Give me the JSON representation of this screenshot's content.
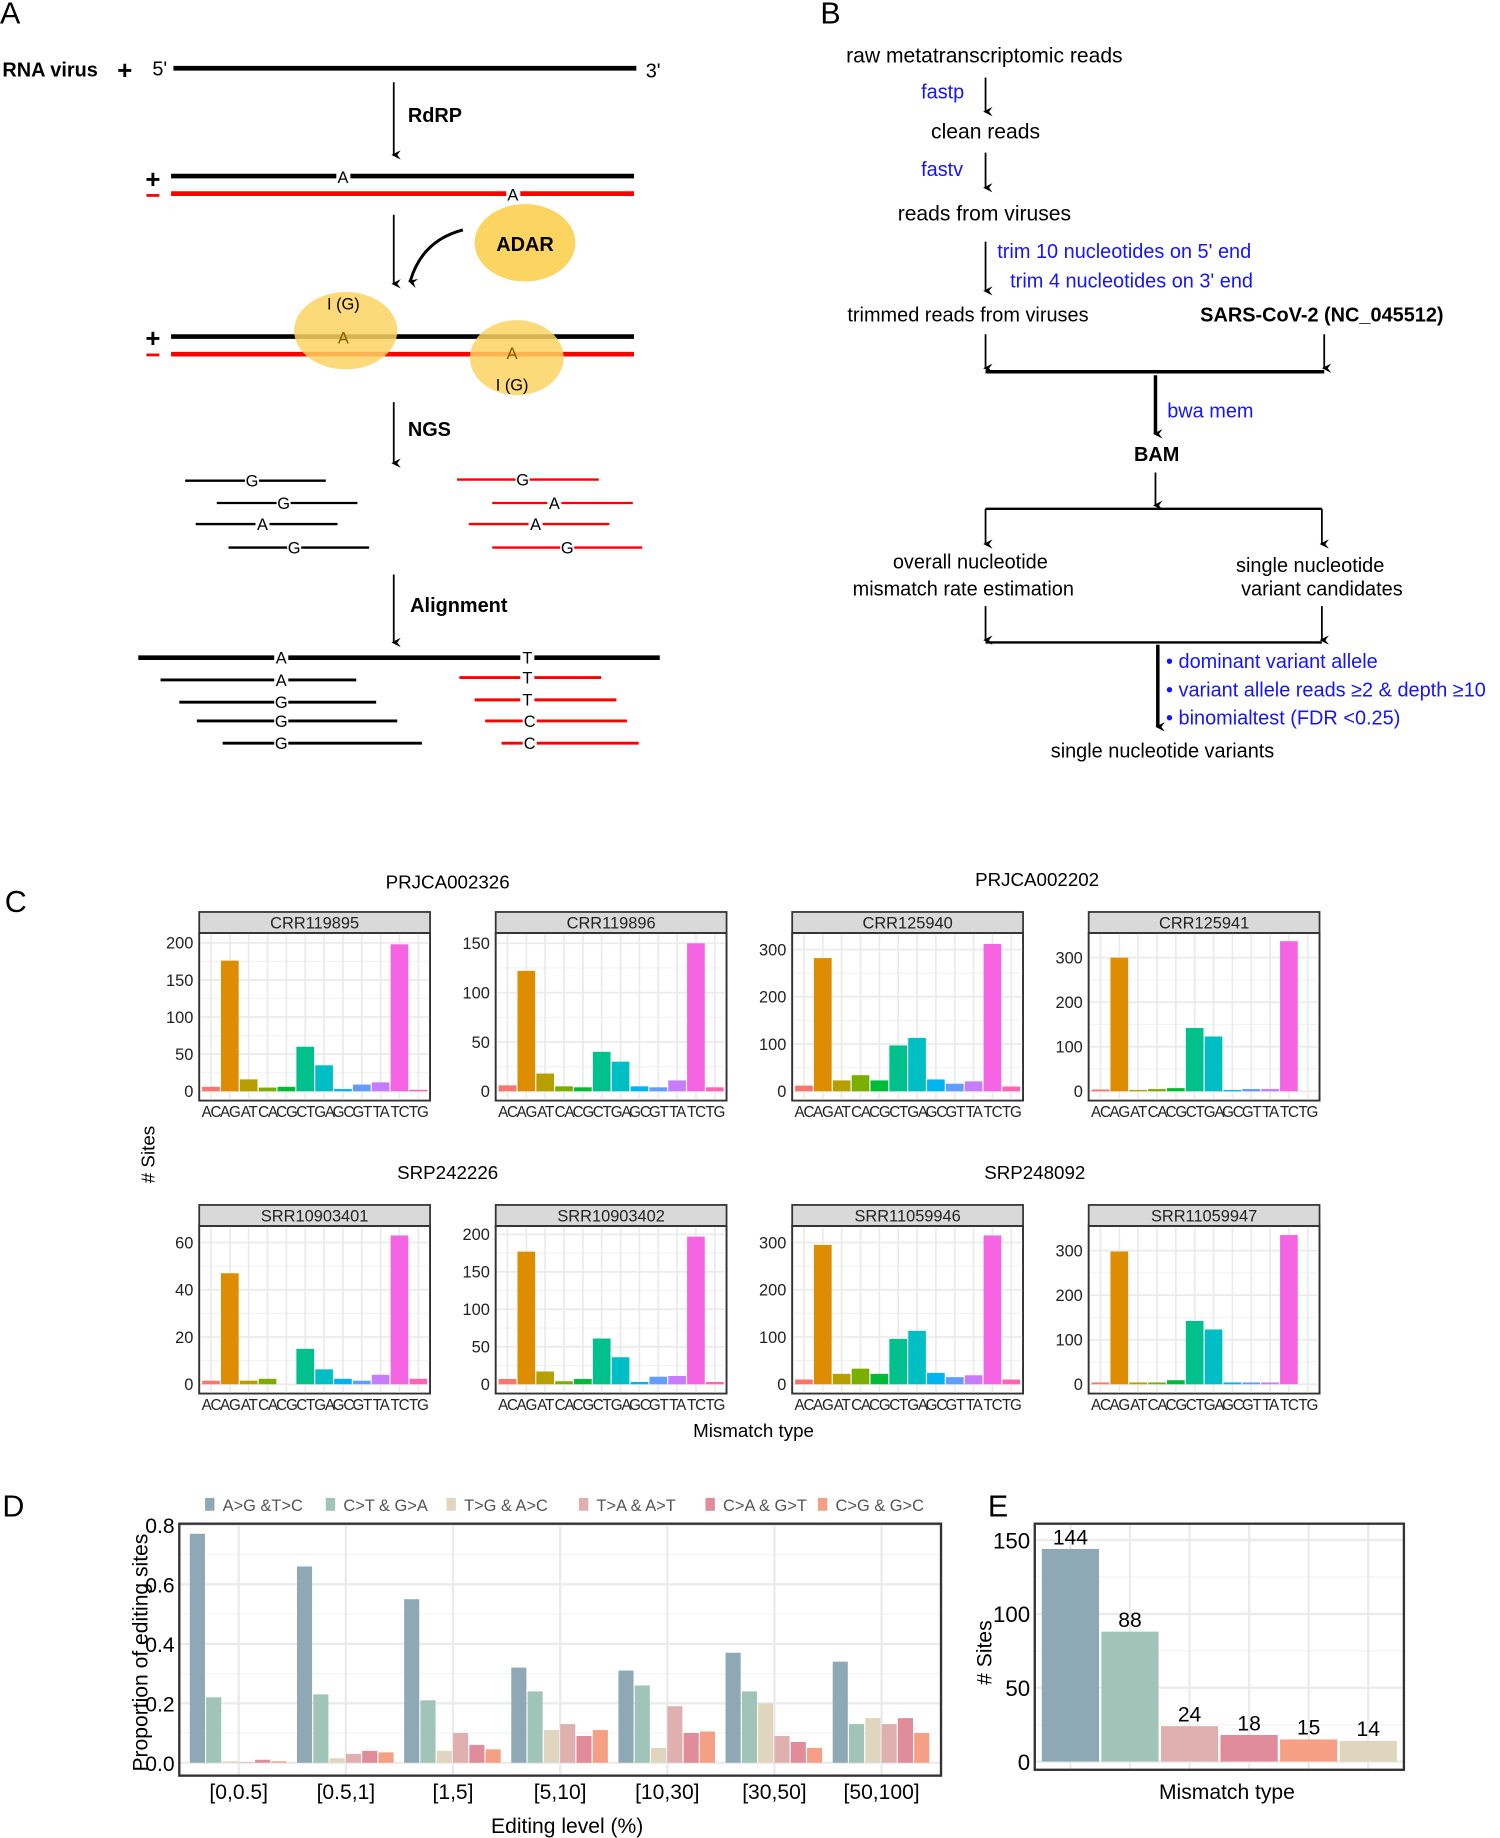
{
  "panel_a": {
    "letter": "A",
    "rna_virus": "RNA  virus",
    "plus": "+",
    "minus": "−",
    "five_prime": "5'",
    "three_prime": "3'",
    "rdrp": "RdRP",
    "adar": "ADAR",
    "ngs": "NGS",
    "alignment": "Alignment",
    "base_a": "A",
    "base_g": "G",
    "base_t": "T",
    "base_c": "C",
    "inosine": "I (G)",
    "colors": {
      "plus_strand": "#000000",
      "minus_strand": "#ff0000",
      "adar": "#fcd462"
    }
  },
  "panel_b": {
    "letter": "B",
    "raw_reads": "raw metatranscriptomic reads",
    "fastp": "fastp",
    "clean_reads": "clean reads",
    "fastv": "fastv",
    "virus_reads": "reads from viruses",
    "trim5": "trim 10 nucleotides on 5' end",
    "trim3": "trim 4 nucleotides on 3' end",
    "trimmed": "trimmed reads from viruses",
    "reference": "SARS-CoV-2  (NC_045512)",
    "bwa": "bwa mem",
    "bam": "BAM",
    "overall1": "overall  nucleotide",
    "overall2": "mismatch rate estimation",
    "single1": "single nucleotide",
    "single2": "variant  candidates",
    "filter1": "• dominant  variant  allele",
    "filter2": "• variant allele reads ≥2 & depth ≥10",
    "filter3": "• binomialtest    (FDR <0.25)",
    "snv": "single nucleotide variants",
    "colors": {
      "tool": "#1414ff"
    }
  },
  "panel_c": {
    "letter": "C",
    "groups": [
      "PRJCA002326",
      "PRJCA002202",
      "SRP242226",
      "SRP248092"
    ],
    "ylabel": "# Sites",
    "xlabel": "Mismatch type"
  },
  "panel_d": {
    "letter": "D"
  },
  "panel_e": {
    "letter": "E"
  },
  "chart_data": [
    {
      "type": "bar",
      "panel": "C",
      "facets_categories": [
        "AC",
        "AG",
        "AT",
        "CA",
        "CG",
        "CT",
        "GA",
        "GC",
        "GT",
        "TA",
        "TC",
        "TG"
      ],
      "colors": [
        "#F8766D",
        "#DE8C00",
        "#B79F00",
        "#7CAE00",
        "#00BA38",
        "#00C08B",
        "#00BFC4",
        "#00B4F0",
        "#619CFF",
        "#C77CFF",
        "#F564E3",
        "#FF64B0"
      ],
      "xlabel": "Mismatch type",
      "ylabel": "# Sites",
      "grid": true,
      "facets": [
        {
          "title": "CRR119895",
          "group": "PRJCA002326",
          "ylim": [
            0,
            210
          ],
          "ticks": [
            0,
            50,
            100,
            150,
            200
          ],
          "values": [
            6,
            176,
            16,
            5,
            6,
            60,
            35,
            3,
            9,
            12,
            198,
            2
          ]
        },
        {
          "title": "CRR119896",
          "group": "PRJCA002326",
          "ylim": [
            0,
            158
          ],
          "ticks": [
            0,
            50,
            100,
            150
          ],
          "values": [
            6,
            122,
            18,
            5,
            4,
            40,
            30,
            5,
            4,
            11,
            150,
            4
          ]
        },
        {
          "title": "CRR125940",
          "group": "PRJCA002202",
          "ylim": [
            0,
            330
          ],
          "ticks": [
            0,
            100,
            200,
            300
          ],
          "values": [
            12,
            282,
            23,
            34,
            23,
            97,
            113,
            25,
            16,
            21,
            312,
            10
          ]
        },
        {
          "title": "CRR125941",
          "group": "PRJCA002202",
          "ylim": [
            0,
            350
          ],
          "ticks": [
            0,
            100,
            200,
            300
          ],
          "values": [
            4,
            300,
            3,
            5,
            7,
            142,
            123,
            3,
            5,
            5,
            337,
            0
          ]
        },
        {
          "title": "SRR10903401",
          "group": "SRP242226",
          "ylim": [
            0,
            66
          ],
          "ticks": [
            0,
            20,
            40,
            60
          ],
          "values": [
            1.5,
            47,
            1.5,
            2.3,
            0,
            15,
            6.3,
            2.3,
            1.5,
            4,
            63,
            2.3
          ]
        },
        {
          "title": "SRR10903402",
          "group": "SRP242226",
          "ylim": [
            0,
            208
          ],
          "ticks": [
            0,
            50,
            100,
            150,
            200
          ],
          "values": [
            7,
            177,
            17,
            4,
            7,
            61,
            36,
            3,
            10,
            11,
            197,
            3
          ]
        },
        {
          "title": "SRR11059946",
          "group": "SRP248092",
          "ylim": [
            0,
            330
          ],
          "ticks": [
            0,
            100,
            200,
            300
          ],
          "values": [
            10,
            295,
            22,
            33,
            22,
            96,
            113,
            24,
            15,
            19,
            315,
            10
          ]
        },
        {
          "title": "SRR11059947",
          "group": "SRP248092",
          "ylim": [
            0,
            350
          ],
          "ticks": [
            0,
            100,
            200,
            300
          ],
          "values": [
            4,
            298,
            4,
            4,
            9,
            142,
            123,
            4,
            4,
            4,
            335,
            0
          ]
        }
      ]
    },
    {
      "type": "bar",
      "panel": "D",
      "categories": [
        "[0,0.5]",
        "[0.5,1]",
        "[1,5]",
        "[5,10]",
        "[10,30]",
        "[30,50]",
        "[50,100]"
      ],
      "xlabel": "Editing level (%)",
      "ylabel": "Proportion of editing sites",
      "ylim": [
        0,
        0.8
      ],
      "ticks": [
        0.0,
        0.2,
        0.4,
        0.6,
        0.8
      ],
      "grid": true,
      "legend": "top",
      "series": [
        {
          "name": "A>G &T>C",
          "color": "#8fa8b5",
          "values": [
            0.77,
            0.66,
            0.55,
            0.32,
            0.31,
            0.37,
            0.34
          ]
        },
        {
          "name": "C>T & G>A",
          "color": "#a0c4b8",
          "values": [
            0.22,
            0.23,
            0.21,
            0.24,
            0.26,
            0.24,
            0.13
          ]
        },
        {
          "name": "T>G & A>C",
          "color": "#e0d5bf",
          "values": [
            0.005,
            0.015,
            0.04,
            0.11,
            0.05,
            0.2,
            0.15
          ]
        },
        {
          "name": "T>A & A>T",
          "color": "#e0b0b0",
          "values": [
            0.002,
            0.03,
            0.1,
            0.13,
            0.19,
            0.09,
            0.13
          ]
        },
        {
          "name": "C>A & G>T",
          "color": "#e08c9a",
          "values": [
            0.01,
            0.04,
            0.06,
            0.09,
            0.1,
            0.07,
            0.15
          ]
        },
        {
          "name": "C>G & G>C",
          "color": "#f5a084",
          "values": [
            0.005,
            0.035,
            0.045,
            0.11,
            0.105,
            0.05,
            0.1
          ]
        }
      ]
    },
    {
      "type": "bar",
      "panel": "E",
      "values": [
        144,
        88,
        24,
        18,
        15,
        14
      ],
      "colors": [
        "#8fa8b5",
        "#a0c4b8",
        "#e0b0b0",
        "#e08c9a",
        "#f5a084",
        "#e0d5bf"
      ],
      "data_labels": [
        "144",
        "88",
        "24",
        "18",
        "15",
        "14"
      ],
      "xlabel": "Mismatch type",
      "ylabel": "# Sites",
      "ylim": [
        0,
        160
      ],
      "ticks": [
        0,
        50,
        100,
        150
      ],
      "grid": true
    }
  ]
}
